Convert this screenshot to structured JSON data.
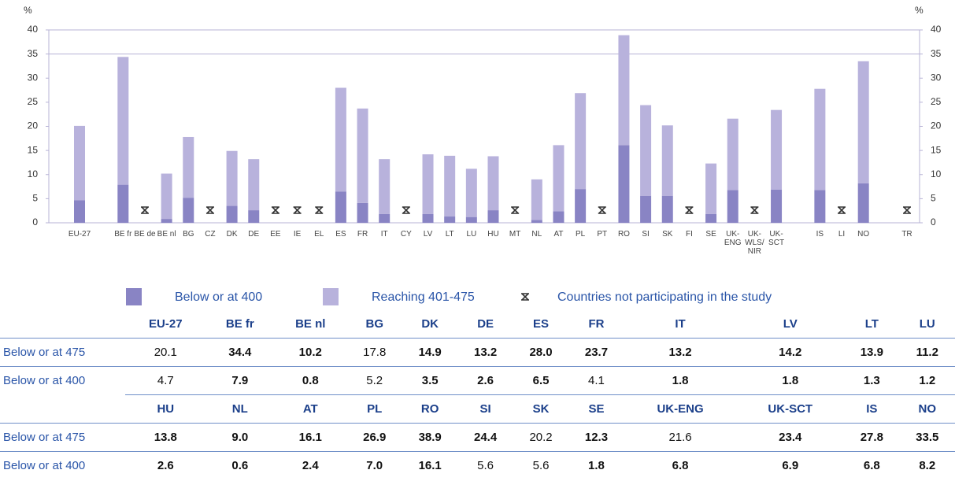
{
  "chart_data": {
    "type": "stacked_bar",
    "y_unit": "%",
    "categories": [
      "EU-27",
      null,
      "BE fr",
      "BE de",
      "BE nl",
      "BG",
      "CZ",
      "DK",
      "DE",
      "EE",
      "IE",
      "EL",
      "ES",
      "FR",
      "IT",
      "CY",
      "LV",
      "LT",
      "LU",
      "HU",
      "MT",
      "NL",
      "AT",
      "PL",
      "PT",
      "RO",
      "SI",
      "SK",
      "FI",
      "SE",
      "UK-ENG",
      "UK-WLS/NIR",
      "UK-SCT",
      null,
      "IS",
      "LI",
      "NO",
      null,
      "TR"
    ],
    "series": [
      {
        "name": "Below or at 400",
        "color": "#8984c4",
        "values": [
          4.7,
          null,
          7.9,
          null,
          0.8,
          5.2,
          null,
          3.5,
          2.6,
          null,
          null,
          null,
          6.5,
          4.1,
          1.8,
          null,
          1.8,
          1.3,
          1.2,
          2.6,
          null,
          0.6,
          2.4,
          7.0,
          null,
          16.1,
          5.6,
          5.6,
          null,
          1.8,
          6.8,
          null,
          6.9,
          null,
          6.8,
          null,
          8.2,
          null,
          null
        ]
      },
      {
        "name": "Reaching 401-475",
        "color": "#b8b2dc",
        "values": [
          15.4,
          null,
          26.5,
          null,
          9.4,
          12.6,
          null,
          11.4,
          10.6,
          null,
          null,
          null,
          21.5,
          19.6,
          11.4,
          null,
          12.4,
          12.6,
          10.0,
          11.2,
          null,
          8.4,
          13.7,
          19.9,
          null,
          22.8,
          18.8,
          14.6,
          null,
          10.5,
          14.8,
          null,
          16.5,
          null,
          21.0,
          null,
          25.3,
          null,
          null
        ]
      }
    ],
    "not_participating_label": "Countries not participating in the study",
    "ylim": [
      0,
      40
    ],
    "yticks": [
      0,
      5,
      10,
      15,
      20,
      25,
      30,
      35,
      40
    ]
  },
  "table": {
    "rows": [
      {
        "header": true,
        "label": "",
        "cells": [
          {
            "text": "EU-27"
          },
          {
            "text": "BE fr"
          },
          {
            "text": "BE nl"
          },
          {
            "text": "BG"
          },
          {
            "text": "DK"
          },
          {
            "text": "DE"
          },
          {
            "text": "ES"
          },
          {
            "text": "FR"
          },
          {
            "text": "IT"
          },
          {
            "text": "LV"
          },
          {
            "text": "LT"
          },
          {
            "text": "LU"
          }
        ]
      },
      {
        "header": false,
        "label": "Below or at 475",
        "cells": [
          {
            "text": "20.1",
            "bold": false
          },
          {
            "text": "34.4",
            "bold": true
          },
          {
            "text": "10.2",
            "bold": true
          },
          {
            "text": "17.8",
            "bold": false
          },
          {
            "text": "14.9",
            "bold": true
          },
          {
            "text": "13.2",
            "bold": true
          },
          {
            "text": "28.0",
            "bold": true
          },
          {
            "text": "23.7",
            "bold": true
          },
          {
            "text": "13.2",
            "bold": true
          },
          {
            "text": "14.2",
            "bold": true
          },
          {
            "text": "13.9",
            "bold": true
          },
          {
            "text": "11.2",
            "bold": true
          }
        ]
      },
      {
        "header": false,
        "label": "Below or at 400",
        "cells": [
          {
            "text": "4.7",
            "bold": false
          },
          {
            "text": "7.9",
            "bold": true
          },
          {
            "text": "0.8",
            "bold": true
          },
          {
            "text": "5.2",
            "bold": false
          },
          {
            "text": "3.5",
            "bold": true
          },
          {
            "text": "2.6",
            "bold": true
          },
          {
            "text": "6.5",
            "bold": true
          },
          {
            "text": "4.1",
            "bold": false
          },
          {
            "text": "1.8",
            "bold": true
          },
          {
            "text": "1.8",
            "bold": true
          },
          {
            "text": "1.3",
            "bold": true
          },
          {
            "text": "1.2",
            "bold": true
          }
        ]
      },
      {
        "header": true,
        "label": "",
        "cells": [
          {
            "text": "HU"
          },
          {
            "text": "NL"
          },
          {
            "text": "AT"
          },
          {
            "text": "PL"
          },
          {
            "text": "RO"
          },
          {
            "text": "SI"
          },
          {
            "text": "SK"
          },
          {
            "text": "SE"
          },
          {
            "text": "UK-ENG"
          },
          {
            "text": "UK-SCT"
          },
          {
            "text": "IS"
          },
          {
            "text": "NO"
          }
        ]
      },
      {
        "header": false,
        "label": "Below or at 475",
        "cells": [
          {
            "text": "13.8",
            "bold": true
          },
          {
            "text": "9.0",
            "bold": true
          },
          {
            "text": "16.1",
            "bold": true
          },
          {
            "text": "26.9",
            "bold": true
          },
          {
            "text": "38.9",
            "bold": true
          },
          {
            "text": "24.4",
            "bold": true
          },
          {
            "text": "20.2",
            "bold": false
          },
          {
            "text": "12.3",
            "bold": true
          },
          {
            "text": "21.6",
            "bold": false
          },
          {
            "text": "23.4",
            "bold": true
          },
          {
            "text": "27.8",
            "bold": true
          },
          {
            "text": "33.5",
            "bold": true
          }
        ]
      },
      {
        "header": false,
        "label": "Below or at 400",
        "cells": [
          {
            "text": "2.6",
            "bold": true
          },
          {
            "text": "0.6",
            "bold": true
          },
          {
            "text": "2.4",
            "bold": true
          },
          {
            "text": "7.0",
            "bold": true
          },
          {
            "text": "16.1",
            "bold": true
          },
          {
            "text": "5.6",
            "bold": false
          },
          {
            "text": "5.6",
            "bold": false
          },
          {
            "text": "1.8",
            "bold": true
          },
          {
            "text": "6.8",
            "bold": true
          },
          {
            "text": "6.9",
            "bold": true
          },
          {
            "text": "6.8",
            "bold": true
          },
          {
            "text": "8.2",
            "bold": true
          }
        ]
      }
    ]
  }
}
